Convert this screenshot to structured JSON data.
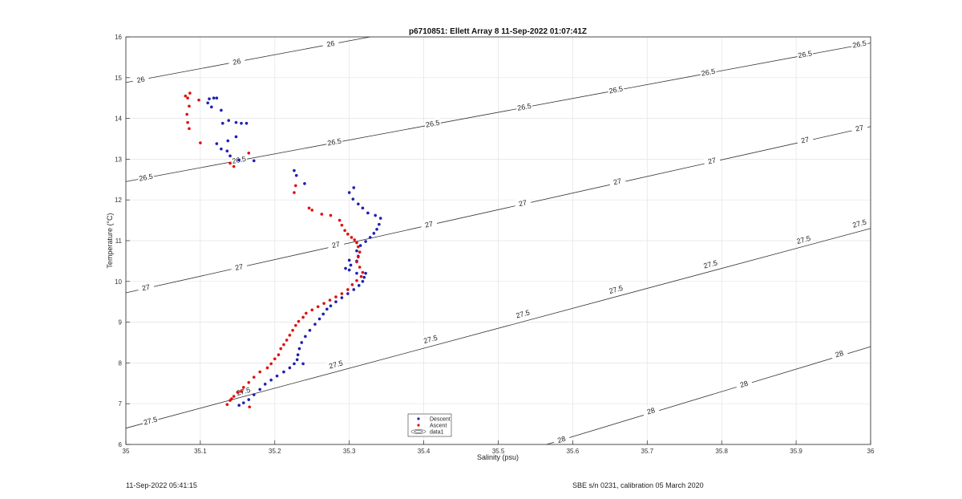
{
  "chart_data": {
    "type": "scatter",
    "title": "p6710851: Ellett Array 8 11-Sep-2022 01:07:41Z",
    "xlabel": "Salinity (psu)",
    "ylabel": "Temperature (°C)",
    "xlim": [
      35,
      36
    ],
    "ylim": [
      6,
      16
    ],
    "xticks": [
      "35",
      "35.1",
      "35.2",
      "35.3",
      "35.4",
      "35.5",
      "35.6",
      "35.7",
      "35.8",
      "35.9",
      "36"
    ],
    "yticks": [
      "6",
      "7",
      "8",
      "9",
      "10",
      "11",
      "12",
      "13",
      "14",
      "15",
      "16"
    ],
    "grid": true,
    "legend_placement": "bottom-center",
    "legend": [
      "Descent",
      "Ascent",
      "data1"
    ],
    "series": [
      {
        "name": "Descent",
        "color": "#1f1fb0",
        "marker": "circle",
        "points": [
          [
            35.152,
            6.96
          ],
          [
            35.158,
            7.02
          ],
          [
            35.165,
            7.1
          ],
          [
            35.172,
            7.22
          ],
          [
            35.18,
            7.35
          ],
          [
            35.187,
            7.48
          ],
          [
            35.195,
            7.58
          ],
          [
            35.203,
            7.68
          ],
          [
            35.212,
            7.78
          ],
          [
            35.22,
            7.88
          ],
          [
            35.226,
            7.98
          ],
          [
            35.23,
            8.08
          ],
          [
            35.231,
            8.2
          ],
          [
            35.233,
            8.35
          ],
          [
            35.236,
            8.5
          ],
          [
            35.241,
            8.65
          ],
          [
            35.247,
            8.8
          ],
          [
            35.254,
            8.95
          ],
          [
            35.26,
            9.08
          ],
          [
            35.265,
            9.2
          ],
          [
            35.27,
            9.32
          ],
          [
            35.275,
            9.4
          ],
          [
            35.282,
            9.5
          ],
          [
            35.29,
            9.6
          ],
          [
            35.298,
            9.7
          ],
          [
            35.306,
            9.8
          ],
          [
            35.313,
            9.9
          ],
          [
            35.318,
            10.0
          ],
          [
            35.32,
            10.1
          ],
          [
            35.322,
            10.2
          ],
          [
            35.31,
            10.2
          ],
          [
            35.3,
            10.28
          ],
          [
            35.302,
            10.4
          ],
          [
            35.31,
            10.5
          ],
          [
            35.312,
            10.62
          ],
          [
            35.31,
            10.75
          ],
          [
            35.315,
            10.88
          ],
          [
            35.322,
            10.98
          ],
          [
            35.328,
            11.08
          ],
          [
            35.333,
            11.18
          ],
          [
            35.337,
            11.28
          ],
          [
            35.34,
            11.4
          ],
          [
            35.342,
            11.55
          ],
          [
            35.335,
            11.62
          ],
          [
            35.325,
            11.68
          ],
          [
            35.318,
            11.8
          ],
          [
            35.312,
            11.9
          ],
          [
            35.305,
            12.02
          ],
          [
            35.3,
            12.18
          ],
          [
            35.306,
            12.3
          ],
          [
            35.3,
            10.52
          ],
          [
            35.295,
            10.32
          ],
          [
            35.238,
            7.98
          ],
          [
            35.24,
            12.4
          ],
          [
            35.229,
            12.6
          ],
          [
            35.226,
            12.72
          ],
          [
            35.172,
            12.96
          ],
          [
            35.152,
            12.98
          ],
          [
            35.14,
            13.08
          ],
          [
            35.136,
            13.2
          ],
          [
            35.128,
            13.25
          ],
          [
            35.122,
            13.38
          ],
          [
            35.137,
            13.45
          ],
          [
            35.148,
            13.55
          ],
          [
            35.155,
            13.88
          ],
          [
            35.148,
            13.9
          ],
          [
            35.138,
            13.95
          ],
          [
            35.13,
            13.88
          ],
          [
            35.128,
            14.2
          ],
          [
            35.115,
            14.28
          ],
          [
            35.11,
            14.38
          ],
          [
            35.112,
            14.48
          ],
          [
            35.118,
            14.5
          ],
          [
            35.122,
            14.5
          ],
          [
            35.162,
            13.88
          ]
        ]
      },
      {
        "name": "Ascent",
        "color": "#e01010",
        "marker": "circle",
        "points": [
          [
            35.136,
            6.98
          ],
          [
            35.14,
            7.08
          ],
          [
            35.145,
            7.18
          ],
          [
            35.15,
            7.28
          ],
          [
            35.158,
            7.4
          ],
          [
            35.165,
            7.52
          ],
          [
            35.172,
            7.65
          ],
          [
            35.18,
            7.78
          ],
          [
            35.19,
            7.88
          ],
          [
            35.195,
            7.98
          ],
          [
            35.2,
            8.1
          ],
          [
            35.205,
            8.2
          ],
          [
            35.208,
            8.35
          ],
          [
            35.212,
            8.45
          ],
          [
            35.216,
            8.56
          ],
          [
            35.22,
            8.68
          ],
          [
            35.224,
            8.8
          ],
          [
            35.228,
            8.92
          ],
          [
            35.232,
            9.02
          ],
          [
            35.238,
            9.12
          ],
          [
            35.242,
            9.22
          ],
          [
            35.25,
            9.3
          ],
          [
            35.258,
            9.38
          ],
          [
            35.266,
            9.46
          ],
          [
            35.274,
            9.54
          ],
          [
            35.282,
            9.62
          ],
          [
            35.29,
            9.7
          ],
          [
            35.298,
            9.8
          ],
          [
            35.304,
            9.92
          ],
          [
            35.31,
            10.02
          ],
          [
            35.316,
            10.12
          ],
          [
            35.318,
            10.22
          ],
          [
            35.314,
            10.35
          ],
          [
            35.31,
            10.48
          ],
          [
            35.312,
            10.6
          ],
          [
            35.314,
            10.72
          ],
          [
            35.312,
            10.85
          ],
          [
            35.31,
            10.95
          ],
          [
            35.307,
            11.02
          ],
          [
            35.303,
            11.08
          ],
          [
            35.298,
            11.16
          ],
          [
            35.294,
            11.25
          ],
          [
            35.29,
            11.38
          ],
          [
            35.287,
            11.5
          ],
          [
            35.275,
            11.62
          ],
          [
            35.25,
            11.75
          ],
          [
            35.246,
            11.8
          ],
          [
            35.226,
            12.18
          ],
          [
            35.228,
            12.35
          ],
          [
            35.145,
            12.82
          ],
          [
            35.14,
            12.9
          ],
          [
            35.165,
            13.15
          ],
          [
            35.1,
            13.4
          ],
          [
            35.085,
            13.75
          ],
          [
            35.083,
            13.9
          ],
          [
            35.082,
            14.1
          ],
          [
            35.085,
            14.3
          ],
          [
            35.083,
            14.5
          ],
          [
            35.086,
            14.62
          ],
          [
            35.08,
            14.55
          ],
          [
            35.098,
            14.45
          ],
          [
            35.166,
            6.92
          ],
          [
            35.155,
            7.3
          ],
          [
            35.142,
            7.12
          ],
          [
            35.263,
            11.65
          ]
        ]
      }
    ],
    "contours": [
      {
        "level": "26",
        "points": [
          [
            35.0,
            14.88
          ],
          [
            35.328,
            16.0
          ]
        ],
        "labels": [
          [
            35.02,
            14.95
          ],
          [
            35.149,
            15.39
          ],
          [
            35.275,
            15.83
          ]
        ]
      },
      {
        "level": "26.5",
        "points": [
          [
            35.0,
            12.45
          ],
          [
            36.0,
            15.85
          ]
        ],
        "labels": [
          [
            35.027,
            12.55
          ],
          [
            35.152,
            12.98
          ],
          [
            35.28,
            13.42
          ],
          [
            35.412,
            13.87
          ],
          [
            35.535,
            14.28
          ],
          [
            35.658,
            14.7
          ],
          [
            35.782,
            15.13
          ],
          [
            35.912,
            15.57
          ],
          [
            35.985,
            15.82
          ]
        ]
      },
      {
        "level": "27",
        "points": [
          [
            35.0,
            9.72
          ],
          [
            36.0,
            13.8
          ]
        ],
        "labels": [
          [
            35.027,
            9.85
          ],
          [
            35.152,
            10.35
          ],
          [
            35.282,
            10.9
          ],
          [
            35.407,
            11.4
          ],
          [
            35.533,
            11.92
          ],
          [
            35.66,
            12.45
          ],
          [
            35.787,
            12.96
          ],
          [
            35.912,
            13.47
          ],
          [
            35.985,
            13.76
          ]
        ]
      },
      {
        "level": "27.5",
        "points": [
          [
            35.0,
            6.4
          ],
          [
            36.0,
            11.3
          ]
        ],
        "labels": [
          [
            35.033,
            6.58
          ],
          [
            35.158,
            7.3
          ],
          [
            35.282,
            7.96
          ],
          [
            35.409,
            8.58
          ],
          [
            35.533,
            9.2
          ],
          [
            35.658,
            9.8
          ],
          [
            35.785,
            10.42
          ],
          [
            35.91,
            11.02
          ],
          [
            35.985,
            11.42
          ]
        ]
      },
      {
        "level": "28",
        "points": [
          [
            35.565,
            6.0
          ],
          [
            36.0,
            8.4
          ]
        ],
        "labels": [
          [
            35.585,
            6.12
          ],
          [
            35.705,
            6.82
          ],
          [
            35.83,
            7.48
          ],
          [
            35.958,
            8.22
          ]
        ]
      }
    ]
  },
  "footer": {
    "left": "11-Sep-2022 05:41:15",
    "right": "SBE s/n 0231, calibration 05 March 2020"
  }
}
